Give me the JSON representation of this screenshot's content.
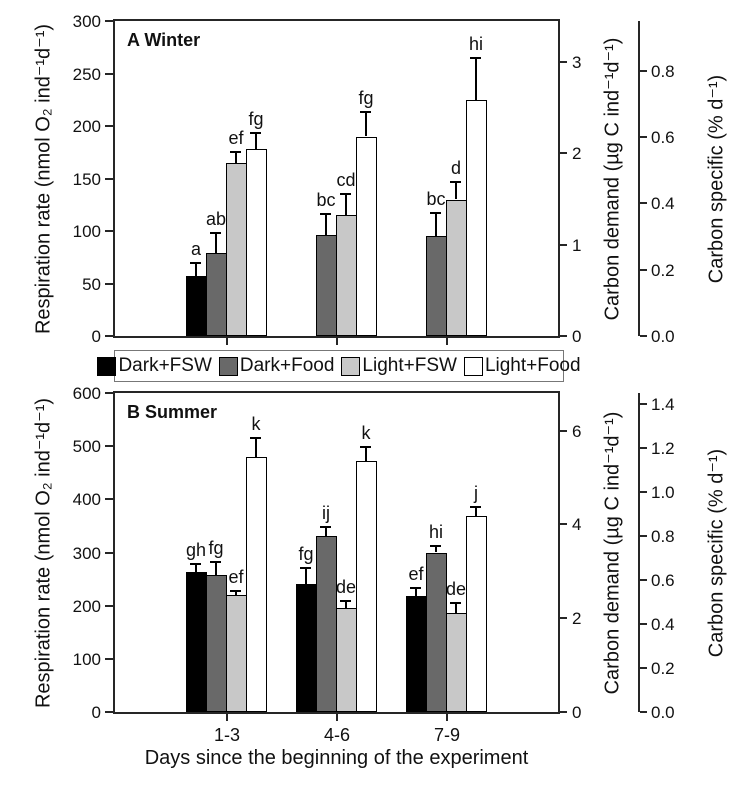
{
  "figure": {
    "xlabel": "Days since the beginning of the experiment",
    "legend": {
      "position": "between-panels",
      "items": [
        {
          "label": "Dark+FSW",
          "color": "#000000"
        },
        {
          "label": "Dark+Food",
          "color": "#696969"
        },
        {
          "label": "Light+FSW",
          "color": "#c8c8c8"
        },
        {
          "label": "Light+Food",
          "color": "#ffffff"
        }
      ]
    },
    "colors": {
      "axis": "#262626",
      "text": "#111111",
      "legend_border": "#777777",
      "background": "#ffffff"
    }
  },
  "chart_data": [
    {
      "type": "bar",
      "panel_label": "A Winter",
      "ylabel": "Respiration rate (nmol O₂ ind⁻¹d⁻¹)",
      "ylim_left": [
        0,
        300
      ],
      "left_ticks": [
        0,
        50,
        100,
        150,
        200,
        250,
        300
      ],
      "categories": [
        "1-3",
        "4-6",
        "7-9"
      ],
      "show_category_labels": false,
      "grid": false,
      "series": [
        {
          "name": "Dark+FSW",
          "color": "#000000",
          "values": [
            57,
            null,
            null
          ],
          "errors": [
            13,
            null,
            null
          ],
          "letters": [
            "a",
            null,
            null
          ]
        },
        {
          "name": "Dark+Food",
          "color": "#696969",
          "values": [
            79,
            96,
            95
          ],
          "errors": [
            19,
            20,
            22
          ],
          "letters": [
            "ab",
            "bc",
            "bc"
          ]
        },
        {
          "name": "Light+FSW",
          "color": "#c8c8c8",
          "values": [
            165,
            115,
            130
          ],
          "errors": [
            10,
            20,
            17
          ],
          "letters": [
            "ef",
            "cd",
            "d"
          ]
        },
        {
          "name": "Light+Food",
          "color": "#ffffff",
          "values": [
            178,
            190,
            225
          ],
          "errors": [
            15,
            23,
            40
          ],
          "letters": [
            "fg",
            "fg",
            "hi"
          ]
        }
      ],
      "axis_demand": {
        "label": "Carbon demand (µg C ind⁻¹d⁻¹)",
        "ticks": [
          "0",
          "1",
          "2",
          "3"
        ],
        "lim": [
          0,
          3.45
        ]
      },
      "axis_specific": {
        "label": "Carbon specific (% d⁻¹)",
        "ticks": [
          "0.0",
          "0.2",
          "0.4",
          "0.6",
          "0.8"
        ],
        "lim": [
          0,
          0.95
        ]
      }
    },
    {
      "type": "bar",
      "panel_label": "B Summer",
      "ylabel": "Respiration rate (nmol O₂ ind⁻¹d⁻¹)",
      "ylim_left": [
        0,
        600
      ],
      "left_ticks": [
        0,
        100,
        200,
        300,
        400,
        500,
        600
      ],
      "categories": [
        "1-3",
        "4-6",
        "7-9"
      ],
      "show_category_labels": true,
      "grid": false,
      "series": [
        {
          "name": "Dark+FSW",
          "color": "#000000",
          "values": [
            263,
            241,
            218
          ],
          "errors": [
            15,
            30,
            15
          ],
          "letters": [
            "gh",
            "fg",
            "ef"
          ]
        },
        {
          "name": "Dark+Food",
          "color": "#696969",
          "values": [
            258,
            331,
            300
          ],
          "errors": [
            24,
            17,
            13
          ],
          "letters": [
            "fg",
            "ij",
            "hi"
          ]
        },
        {
          "name": "Light+FSW",
          "color": "#c8c8c8",
          "values": [
            220,
            195,
            186
          ],
          "errors": [
            8,
            13,
            19
          ],
          "letters": [
            "ef",
            "de",
            "de"
          ]
        },
        {
          "name": "Light+Food",
          "color": "#ffffff",
          "values": [
            480,
            472,
            369
          ],
          "errors": [
            35,
            26,
            17
          ],
          "letters": [
            "k",
            "k",
            "j"
          ]
        }
      ],
      "axis_demand": {
        "label": "Carbon demand (µg C ind⁻¹d⁻¹)",
        "ticks": [
          "0",
          "2",
          "4",
          "6"
        ],
        "lim": [
          0,
          6.8
        ]
      },
      "axis_specific": {
        "label": "Carbon specific (% d⁻¹)",
        "ticks": [
          "0.0",
          "0.2",
          "0.4",
          "0.6",
          "0.8",
          "1.0",
          "1.2",
          "1.4"
        ],
        "lim": [
          0,
          1.45
        ]
      }
    }
  ]
}
